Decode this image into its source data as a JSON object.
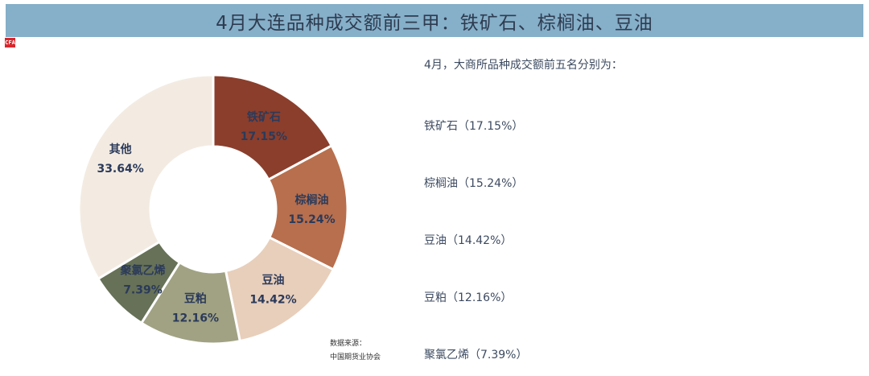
{
  "header": {
    "title": "4月大连品种成交额前三甲：铁矿石、棕榈油、豆油",
    "logo_text": "CFA"
  },
  "chart_data": {
    "type": "pie",
    "variant": "donut",
    "title": "4月大连品种成交额前三甲：铁矿石、棕榈油、豆油",
    "categories": [
      "铁矿石",
      "棕榈油",
      "豆油",
      "豆粕",
      "聚氯乙烯",
      "其他"
    ],
    "values": [
      17.15,
      15.24,
      14.42,
      12.16,
      7.39,
      33.64
    ],
    "labels": [
      "17.15%",
      "15.24%",
      "14.42%",
      "12.16%",
      "7.39%",
      "33.64%"
    ],
    "colors": [
      "#8b3e2c",
      "#b86f4d",
      "#e8cfbb",
      "#a0a283",
      "#667157",
      "#f3ebe2"
    ],
    "unit": "%",
    "start_angle_deg": 0,
    "direction": "clockwise"
  },
  "source": {
    "line1": "数据来源：",
    "line2": "中国期货业协会"
  },
  "summary": {
    "intro": "4月，大商所品种成交额前五名分别为：",
    "items": [
      "铁矿石（17.15%）",
      "棕榈油（15.24%）",
      "豆油（14.42%）",
      "豆粕（12.16%）",
      "聚氯乙烯（7.39%）"
    ]
  }
}
